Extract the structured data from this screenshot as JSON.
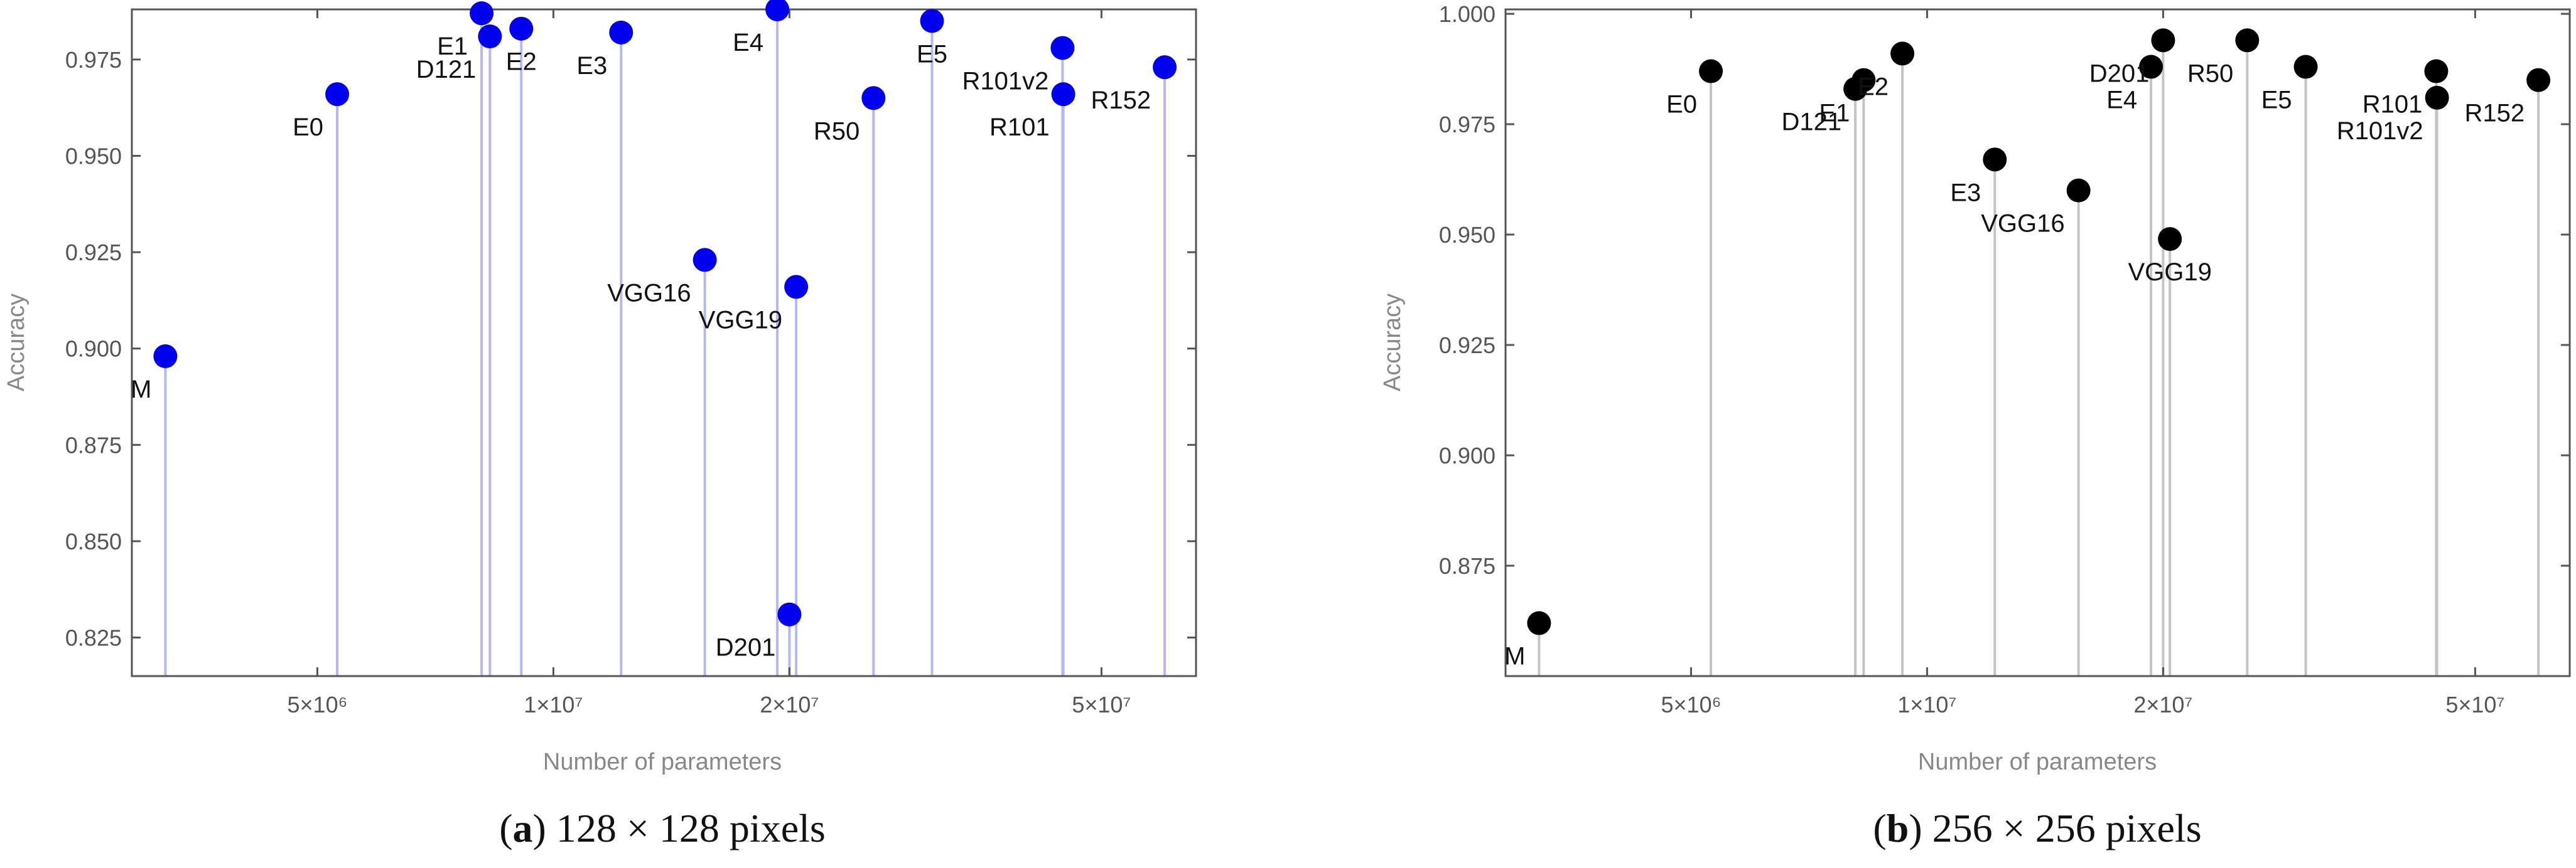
{
  "chart_data": [
    {
      "type": "scatter",
      "xlabel": "Number of parameters",
      "ylabel": "Accuracy",
      "xscale": "log",
      "xlim": [
        2900000,
        66000000
      ],
      "ylim": [
        0.815,
        0.988
      ],
      "x_ticks": [
        5000000,
        10000000,
        20000000,
        50000000
      ],
      "x_tick_labels": [
        "5×10⁶",
        "1×10⁷",
        "2×10⁷",
        "5×10⁷"
      ],
      "y_ticks": [
        0.825,
        0.85,
        0.875,
        0.9,
        0.925,
        0.95,
        0.975
      ],
      "y_tick_labels": [
        "0.825",
        "0.850",
        "0.875",
        "0.900",
        "0.925",
        "0.950",
        "0.975"
      ],
      "marker_color": "#0000ee",
      "stem_color": "#b6b6f2",
      "caption_label": "a",
      "caption_text": " 128 × 128 pixels",
      "points": [
        {
          "label": "M",
          "x": 3200000,
          "y": 0.898,
          "label_pos": "below-left"
        },
        {
          "label": "E0",
          "x": 5300000,
          "y": 0.966,
          "label_pos": "below-left"
        },
        {
          "label": "E1",
          "x": 8100000,
          "y": 0.987,
          "label_pos": "below-left"
        },
        {
          "label": "D121",
          "x": 8300000,
          "y": 0.981,
          "label_pos": "below-left"
        },
        {
          "label": "E2",
          "x": 9100000,
          "y": 0.983,
          "label_pos": "below"
        },
        {
          "label": "E3",
          "x": 12200000,
          "y": 0.982,
          "label_pos": "below-left"
        },
        {
          "label": "VGG16",
          "x": 15600000,
          "y": 0.923,
          "label_pos": "below-left"
        },
        {
          "label": "E4",
          "x": 19300000,
          "y": 0.988,
          "label_pos": "below-left"
        },
        {
          "label": "D201",
          "x": 20000000,
          "y": 0.831,
          "label_pos": "below-left"
        },
        {
          "label": "VGG19",
          "x": 20400000,
          "y": 0.916,
          "label_pos": "below-left"
        },
        {
          "label": "R50",
          "x": 25600000,
          "y": 0.965,
          "label_pos": "below-left"
        },
        {
          "label": "E5",
          "x": 30400000,
          "y": 0.985,
          "label_pos": "below"
        },
        {
          "label": "R101v2",
          "x": 44600000,
          "y": 0.978,
          "label_pos": "below-left"
        },
        {
          "label": "R101",
          "x": 44700000,
          "y": 0.966,
          "label_pos": "below-left"
        },
        {
          "label": "R152",
          "x": 60200000,
          "y": 0.973,
          "label_pos": "below-left"
        }
      ]
    },
    {
      "type": "scatter",
      "xlabel": "Number of parameters",
      "ylabel": "Accuracy",
      "xscale": "log",
      "xlim": [
        2900000,
        66000000
      ],
      "ylim": [
        0.85,
        1.001
      ],
      "x_ticks": [
        5000000,
        10000000,
        20000000,
        50000000
      ],
      "x_tick_labels": [
        "5×10⁶",
        "1×10⁷",
        "2×10⁷",
        "5×10⁷"
      ],
      "y_ticks": [
        0.875,
        0.9,
        0.925,
        0.95,
        0.975,
        1.0
      ],
      "y_tick_labels": [
        "0.875",
        "0.900",
        "0.925",
        "0.950",
        "0.975",
        "1.000"
      ],
      "marker_color": "#000000",
      "stem_color": "#c4c4c4",
      "caption_label": "b",
      "caption_text": " 256 × 256 pixels",
      "points": [
        {
          "label": "M",
          "x": 3200000,
          "y": 0.862,
          "label_pos": "below-left"
        },
        {
          "label": "E0",
          "x": 5300000,
          "y": 0.987,
          "label_pos": "below-left"
        },
        {
          "label": "D121",
          "x": 8100000,
          "y": 0.983,
          "label_pos": "below-left"
        },
        {
          "label": "E1",
          "x": 8300000,
          "y": 0.985,
          "label_pos": "below-left"
        },
        {
          "label": "E2",
          "x": 9300000,
          "y": 0.991,
          "label_pos": "below-left"
        },
        {
          "label": "E3",
          "x": 12200000,
          "y": 0.967,
          "label_pos": "below-left"
        },
        {
          "label": "VGG16",
          "x": 15600000,
          "y": 0.96,
          "label_pos": "below-left"
        },
        {
          "label": "E4",
          "x": 19300000,
          "y": 0.988,
          "label_pos": "below-left"
        },
        {
          "label": "D201",
          "x": 20000000,
          "y": 0.994,
          "label_pos": "below-left"
        },
        {
          "label": "VGG19",
          "x": 20400000,
          "y": 0.949,
          "label_pos": "below"
        },
        {
          "label": "R50",
          "x": 25600000,
          "y": 0.994,
          "label_pos": "below-left"
        },
        {
          "label": "E5",
          "x": 30400000,
          "y": 0.988,
          "label_pos": "below-left"
        },
        {
          "label": "R101",
          "x": 44600000,
          "y": 0.987,
          "label_pos": "below-left"
        },
        {
          "label": "R101v2",
          "x": 44700000,
          "y": 0.981,
          "label_pos": "below-left"
        },
        {
          "label": "R152",
          "x": 60200000,
          "y": 0.985,
          "label_pos": "below-left"
        }
      ]
    }
  ]
}
